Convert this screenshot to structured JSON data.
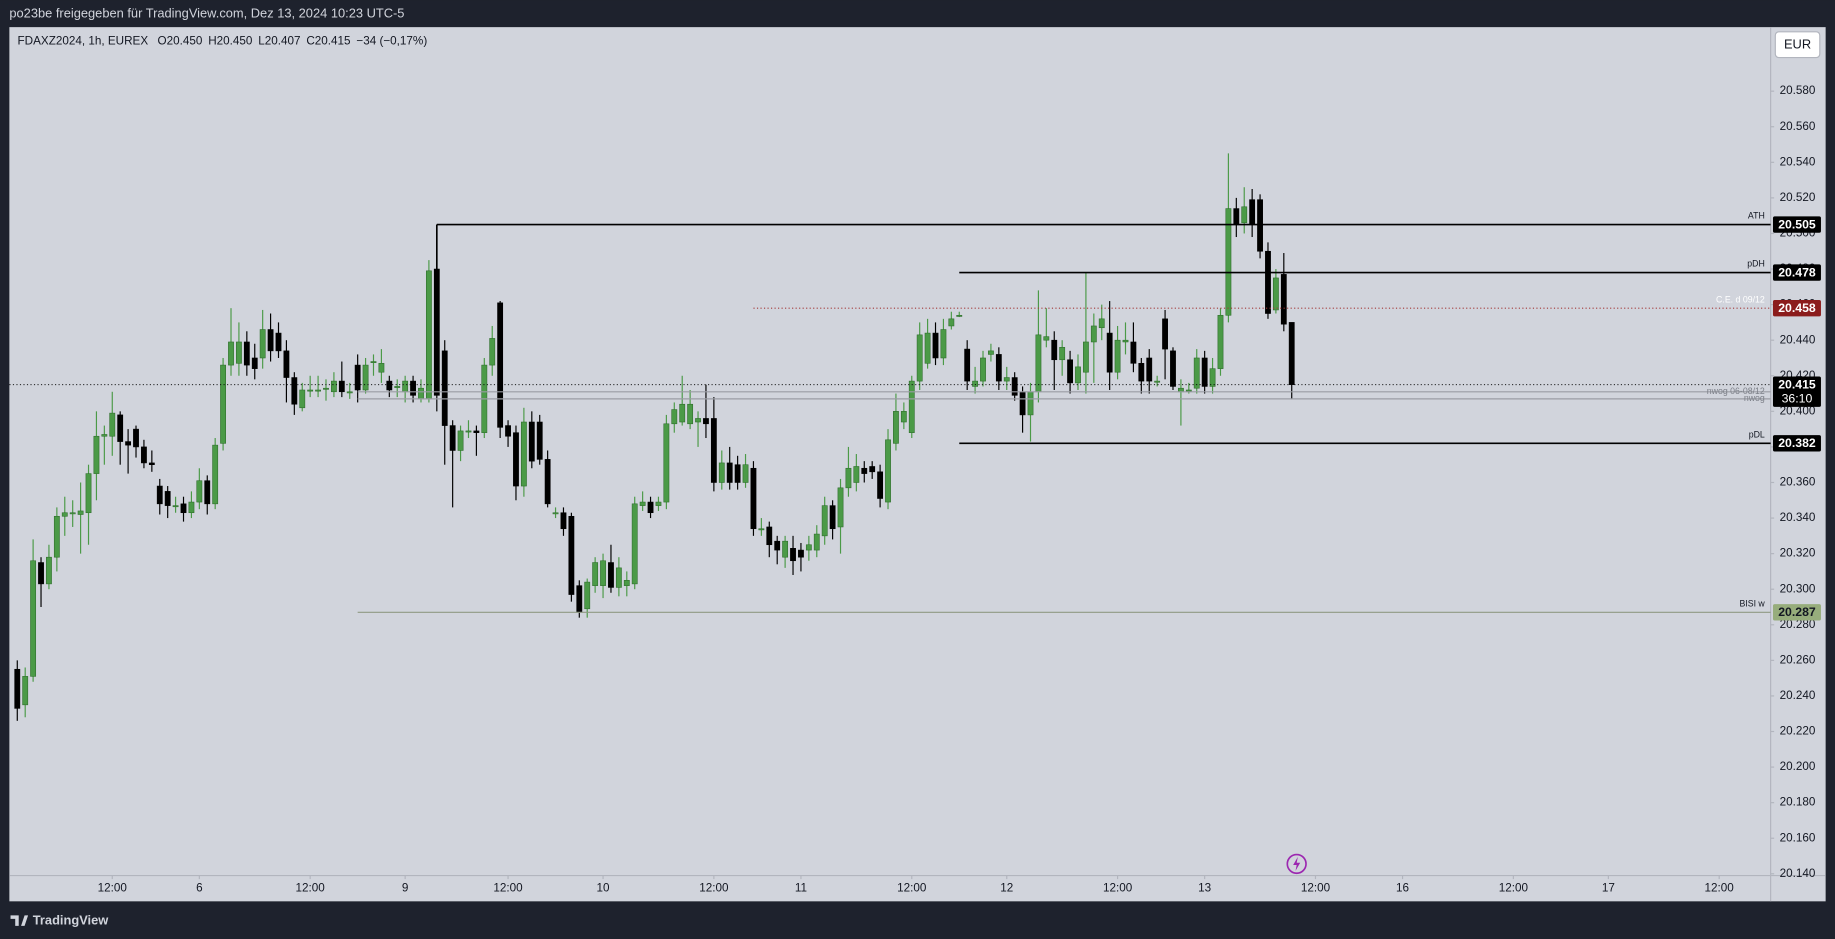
{
  "header": {
    "text": "po23be freigegeben für TradingView.com, Dez 13, 2024 10:23 UTC-5"
  },
  "footer": {
    "brand": "TradingView"
  },
  "chart_data": {
    "type": "candlestick",
    "legend": {
      "symbol": "FDAXZ2024, 1h, EUREX",
      "open": "O20.450",
      "high": "H20.450",
      "low": "L20.407",
      "close": "C20.415",
      "change": "−34 (−0,17%)"
    },
    "currency": "EUR",
    "colors": {
      "up": "#4b9a47",
      "down": "#000000",
      "background": "#d1d4dc"
    },
    "xlim": [
      -1,
      221.5
    ],
    "ylim": [
      20139,
      20616
    ],
    "xticks": [
      {
        "value": 12,
        "label": "12:00"
      },
      {
        "value": 23,
        "label": "6"
      },
      {
        "value": 37,
        "label": "12:00"
      },
      {
        "value": 49,
        "label": "9"
      },
      {
        "value": 62,
        "label": "12:00"
      },
      {
        "value": 74,
        "label": "10"
      },
      {
        "value": 88,
        "label": "12:00"
      },
      {
        "value": 99,
        "label": "11"
      },
      {
        "value": 113,
        "label": "12:00"
      },
      {
        "value": 125,
        "label": "12"
      },
      {
        "value": 139,
        "label": "12:00"
      },
      {
        "value": 150,
        "label": "13"
      },
      {
        "value": 164,
        "label": "12:00"
      },
      {
        "value": 175,
        "label": "16"
      },
      {
        "value": 189,
        "label": "12:00"
      },
      {
        "value": 201,
        "label": "17"
      },
      {
        "value": 215,
        "label": "12:00"
      }
    ],
    "yticks": [
      {
        "value": 20580,
        "label": "20.580"
      },
      {
        "value": 20560,
        "label": "20.560"
      },
      {
        "value": 20540,
        "label": "20.540"
      },
      {
        "value": 20520,
        "label": "20.520"
      },
      {
        "value": 20500,
        "label": "20.500"
      },
      {
        "value": 20480,
        "label": "20.480"
      },
      {
        "value": 20460,
        "label": "20.460"
      },
      {
        "value": 20440,
        "label": "20.440"
      },
      {
        "value": 20420,
        "label": "20.420"
      },
      {
        "value": 20400,
        "label": "20.400"
      },
      {
        "value": 20380,
        "label": "20.380"
      },
      {
        "value": 20360,
        "label": "20.360"
      },
      {
        "value": 20340,
        "label": "20.340"
      },
      {
        "value": 20320,
        "label": "20.320"
      },
      {
        "value": 20300,
        "label": "20.300"
      },
      {
        "value": 20280,
        "label": "20.280"
      },
      {
        "value": 20260,
        "label": "20.260"
      },
      {
        "value": 20240,
        "label": "20.240"
      },
      {
        "value": 20220,
        "label": "20.220"
      },
      {
        "value": 20200,
        "label": "20.200"
      },
      {
        "value": 20180,
        "label": "20.180"
      },
      {
        "value": 20160,
        "label": "20.160"
      },
      {
        "value": 20140,
        "label": "20.140"
      }
    ],
    "candles": {
      "open": [
        20255,
        20235,
        20251,
        20315,
        20303,
        20318,
        20341,
        20343,
        20342,
        20343,
        20365,
        20386,
        20386,
        20398,
        20383,
        20390,
        20380,
        20371,
        20358,
        20355,
        20347,
        20348,
        20343,
        20349,
        20361,
        20348,
        20382,
        20426,
        20427,
        20439,
        20430,
        20430,
        20446,
        20444,
        20434,
        20419,
        20402,
        20412,
        20412,
        20413,
        20411,
        20417,
        20411,
        20426,
        20412,
        20428,
        20422,
        20417,
        20414,
        20411,
        20417,
        20407,
        20407,
        20480,
        20434,
        20392,
        20378,
        20389,
        20389,
        20388,
        20426,
        20461,
        20392,
        20388,
        20358,
        20394,
        20394,
        20373,
        20343,
        20343,
        20341,
        20302,
        20289,
        20302,
        20302,
        20315,
        20301,
        20302,
        20303,
        20347,
        20349,
        20347,
        20349,
        20393,
        20394,
        20393,
        20394,
        20396,
        20396,
        20360,
        20371,
        20370,
        20360,
        20368,
        20334,
        20335,
        20327,
        20318,
        20323,
        20322,
        20322,
        20322,
        20330,
        20347,
        20335,
        20357,
        20360,
        20368,
        20369,
        20366,
        20349,
        20382,
        20394,
        20388,
        20417,
        20427,
        20444,
        20430,
        20448,
        20454,
        20435,
        20414,
        20417,
        20432,
        20432,
        20417,
        20419,
        20411,
        20398,
        20411,
        20440,
        20440,
        20429,
        20429,
        20416,
        20422,
        20439,
        20447,
        20444,
        20422,
        20439,
        20439,
        20427,
        20430,
        20417,
        20452,
        20434,
        20411,
        20412,
        20413,
        20430,
        20414,
        20424,
        20454,
        20514,
        20506,
        20519,
        20519,
        20490,
        20457,
        20477,
        20450
      ],
      "high": [
        20260,
        20256,
        20328,
        20318,
        20325,
        20346,
        20352,
        20350,
        20360,
        20370,
        20400,
        20392,
        20411,
        20400,
        20390,
        20392,
        20384,
        20378,
        20362,
        20358,
        20352,
        20352,
        20355,
        20368,
        20364,
        20385,
        20430,
        20458,
        20450,
        20445,
        20438,
        20457,
        20455,
        20450,
        20440,
        20422,
        20416,
        20420,
        20420,
        20418,
        20422,
        20428,
        20416,
        20432,
        20430,
        20432,
        20435,
        20420,
        20418,
        20420,
        20420,
        20418,
        20485,
        20505,
        20440,
        20395,
        20392,
        20395,
        20392,
        20430,
        20448,
        20462,
        20395,
        20392,
        20402,
        20400,
        20398,
        20378,
        20346,
        20346,
        20343,
        20305,
        20306,
        20318,
        20320,
        20325,
        20318,
        20310,
        20352,
        20355,
        20352,
        20352,
        20398,
        20405,
        20420,
        20412,
        20400,
        20415,
        20408,
        20378,
        20380,
        20375,
        20376,
        20372,
        20340,
        20338,
        20330,
        20330,
        20330,
        20326,
        20330,
        20336,
        20352,
        20350,
        20362,
        20380,
        20376,
        20372,
        20372,
        20370,
        20390,
        20410,
        20405,
        20420,
        20450,
        20452,
        20450,
        20452,
        20456,
        20456,
        20440,
        20425,
        20434,
        20438,
        20436,
        20425,
        20422,
        20414,
        20416,
        20468,
        20458,
        20445,
        20440,
        20434,
        20432,
        20478,
        20455,
        20460,
        20462,
        20448,
        20450,
        20450,
        20430,
        20435,
        20420,
        20457,
        20436,
        20418,
        20416,
        20435,
        20434,
        20430,
        20458,
        20545,
        20520,
        20526,
        20525,
        20522,
        20495,
        20480,
        20489,
        20450
      ],
      "low": [
        20226,
        20228,
        20248,
        20290,
        20300,
        20310,
        20330,
        20335,
        20320,
        20325,
        20350,
        20370,
        20375,
        20370,
        20365,
        20374,
        20368,
        20366,
        20342,
        20340,
        20343,
        20338,
        20340,
        20345,
        20342,
        20345,
        20378,
        20420,
        20420,
        20420,
        20418,
        20424,
        20428,
        20430,
        20405,
        20398,
        20400,
        20408,
        20408,
        20406,
        20408,
        20408,
        20407,
        20405,
        20410,
        20420,
        20416,
        20408,
        20408,
        20405,
        20405,
        20405,
        20405,
        20400,
        20370,
        20346,
        20372,
        20385,
        20375,
        20385,
        20420,
        20385,
        20380,
        20350,
        20352,
        20368,
        20370,
        20346,
        20340,
        20330,
        20293,
        20284,
        20284,
        20298,
        20295,
        20298,
        20296,
        20296,
        20300,
        20344,
        20340,
        20344,
        20345,
        20388,
        20392,
        20390,
        20380,
        20385,
        20355,
        20356,
        20356,
        20356,
        20357,
        20330,
        20330,
        20318,
        20314,
        20312,
        20308,
        20310,
        20316,
        20318,
        20325,
        20328,
        20320,
        20352,
        20355,
        20360,
        20362,
        20346,
        20345,
        20378,
        20390,
        20385,
        20412,
        20424,
        20426,
        20426,
        20446,
        20453,
        20412,
        20410,
        20414,
        20428,
        20412,
        20412,
        20406,
        20388,
        20383,
        20405,
        20436,
        20412,
        20420,
        20410,
        20412,
        20410,
        20416,
        20440,
        20412,
        20418,
        20432,
        20422,
        20410,
        20410,
        20414,
        20418,
        20412,
        20392,
        20410,
        20410,
        20410,
        20410,
        20420,
        20450,
        20498,
        20500,
        20498,
        20486,
        20452,
        20455,
        20445,
        20407
      ],
      "close": [
        20233,
        20251,
        20316,
        20303,
        20318,
        20341,
        20343,
        20343,
        20344,
        20365,
        20386,
        20387,
        20399,
        20383,
        20381,
        20380,
        20371,
        20370,
        20348,
        20347,
        20347,
        20343,
        20349,
        20361,
        20348,
        20381,
        20426,
        20439,
        20439,
        20426,
        20424,
        20446,
        20434,
        20434,
        20419,
        20404,
        20412,
        20412,
        20412,
        20413,
        20417,
        20411,
        20411,
        20412,
        20426,
        20428,
        20427,
        20412,
        20414,
        20417,
        20409,
        20413,
        20479,
        20409,
        20392,
        20378,
        20389,
        20389,
        20388,
        20426,
        20441,
        20391,
        20386,
        20358,
        20394,
        20372,
        20373,
        20348,
        20343,
        20334,
        20297,
        20287,
        20304,
        20315,
        20316,
        20301,
        20312,
        20305,
        20348,
        20349,
        20343,
        20349,
        20393,
        20401,
        20404,
        20404,
        20396,
        20393,
        20360,
        20371,
        20360,
        20360,
        20370,
        20334,
        20334,
        20325,
        20322,
        20327,
        20316,
        20318,
        20325,
        20331,
        20347,
        20334,
        20357,
        20368,
        20369,
        20365,
        20366,
        20351,
        20384,
        20400,
        20400,
        20417,
        20443,
        20444,
        20430,
        20446,
        20452,
        20454,
        20417,
        20417,
        20430,
        20434,
        20417,
        20419,
        20409,
        20398,
        20411,
        20443,
        20442,
        20429,
        20436,
        20416,
        20425,
        20439,
        20448,
        20452,
        20422,
        20440,
        20440,
        20427,
        20417,
        20417,
        20417,
        20435,
        20414,
        20413,
        20412,
        20430,
        20414,
        20424,
        20454,
        20514,
        20505,
        20515,
        20505,
        20490,
        20455,
        20475,
        20449,
        20415
      ]
    },
    "levels": [
      {
        "name": "ATH",
        "value": 20505,
        "label": "20.505",
        "start": 53,
        "color": "#000000",
        "style": "solid",
        "box": "#000000",
        "text_color": "#ffffff"
      },
      {
        "name": "pDH",
        "value": 20478,
        "label": "20.478",
        "start": 119,
        "color": "#000000",
        "style": "solid",
        "box": "#000000",
        "text_color": "#ffffff"
      },
      {
        "name": "C.E. d 09/12",
        "value": 20458,
        "label": "20.458",
        "start": 93,
        "color": "#a33a3a",
        "style": "dotted",
        "box": "#8b1c1c",
        "text_color": "#ffffff"
      },
      {
        "name": "nwog 06-08/12",
        "value": 20411,
        "start": 43,
        "color": "#9a9ca3",
        "style": "solid"
      },
      {
        "name": "nwog",
        "value": 20407,
        "start": 43,
        "color": "#9a9ca3",
        "style": "solid"
      },
      {
        "name": "pDL",
        "value": 20382,
        "label": "20.382",
        "start": 119,
        "color": "#000000",
        "style": "solid",
        "box": "#000000",
        "text_color": "#ffffff"
      },
      {
        "name": "BISI w",
        "value": 20287,
        "label": "20.287",
        "start": 43,
        "color": "#8f9a84",
        "style": "solid",
        "box": "#97ad7c",
        "text_color": "#131722"
      }
    ],
    "last_price": {
      "value": 20415,
      "label": "20.415",
      "countdown": "36:10",
      "color": "#000000"
    }
  }
}
